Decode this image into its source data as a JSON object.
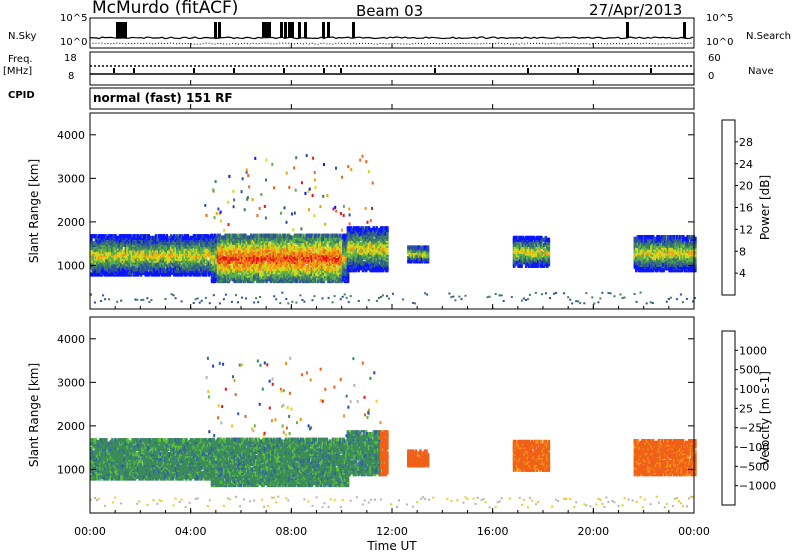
{
  "header": {
    "station": "McMurdo (fitACF)",
    "beam": "Beam 03",
    "date": "27/Apr/2013",
    "cpid_text": "normal (fast) 151 RF"
  },
  "side_labels": {
    "n_sky": "N.Sky",
    "n_search": "N.Search",
    "freq": "Freq.",
    "freq_unit": "[MHz]",
    "cpid": "CPID",
    "nave": "Nave",
    "noise_top": "10^5",
    "noise_bottom": "10^0",
    "noise_top_right": "10^5",
    "noise_bottom_right": "10^0",
    "freq_top": "18",
    "freq_bottom": "8",
    "nave_top": "60",
    "nave_bottom": "0"
  },
  "chart_data": [
    {
      "type": "heatmap",
      "name": "power",
      "ylabel": "Slant Range [km]",
      "ylim": [
        0,
        4500
      ],
      "yticks": [
        "1000",
        "2000",
        "3000",
        "4000"
      ],
      "colorbar_label": "Power [dB]",
      "colorbar_ticks": [
        "4",
        "8",
        "12",
        "16",
        "20",
        "24",
        "28"
      ],
      "colorbar_range": [
        0,
        32
      ],
      "colors": [
        "#0a14ff",
        "#2a50a0",
        "#3c7a64",
        "#5ab04a",
        "#d4d81e",
        "#f0a010",
        "#f06420",
        "#e81414"
      ]
    },
    {
      "type": "heatmap",
      "name": "velocity",
      "ylabel": "Slant Range [km]",
      "ylim": [
        0,
        4500
      ],
      "yticks": [
        "1000",
        "2000",
        "3000",
        "4000"
      ],
      "colorbar_label": "Velocity [m s-1]",
      "colorbar_ticks": [
        "1000",
        "500",
        "100",
        "25",
        "−25",
        "−100",
        "−500",
        "−1000"
      ],
      "colors": [
        "#1f3cc8",
        "#3462a8",
        "#3c8c5a",
        "#5abe3c",
        "#b4b4b4",
        "#f0c820",
        "#f09018",
        "#f06018",
        "#e81414"
      ]
    }
  ],
  "time_axis": {
    "xlabel": "Time UT",
    "ticks": [
      "00:00",
      "04:00",
      "08:00",
      "12:00",
      "16:00",
      "20:00",
      "00:00"
    ]
  }
}
